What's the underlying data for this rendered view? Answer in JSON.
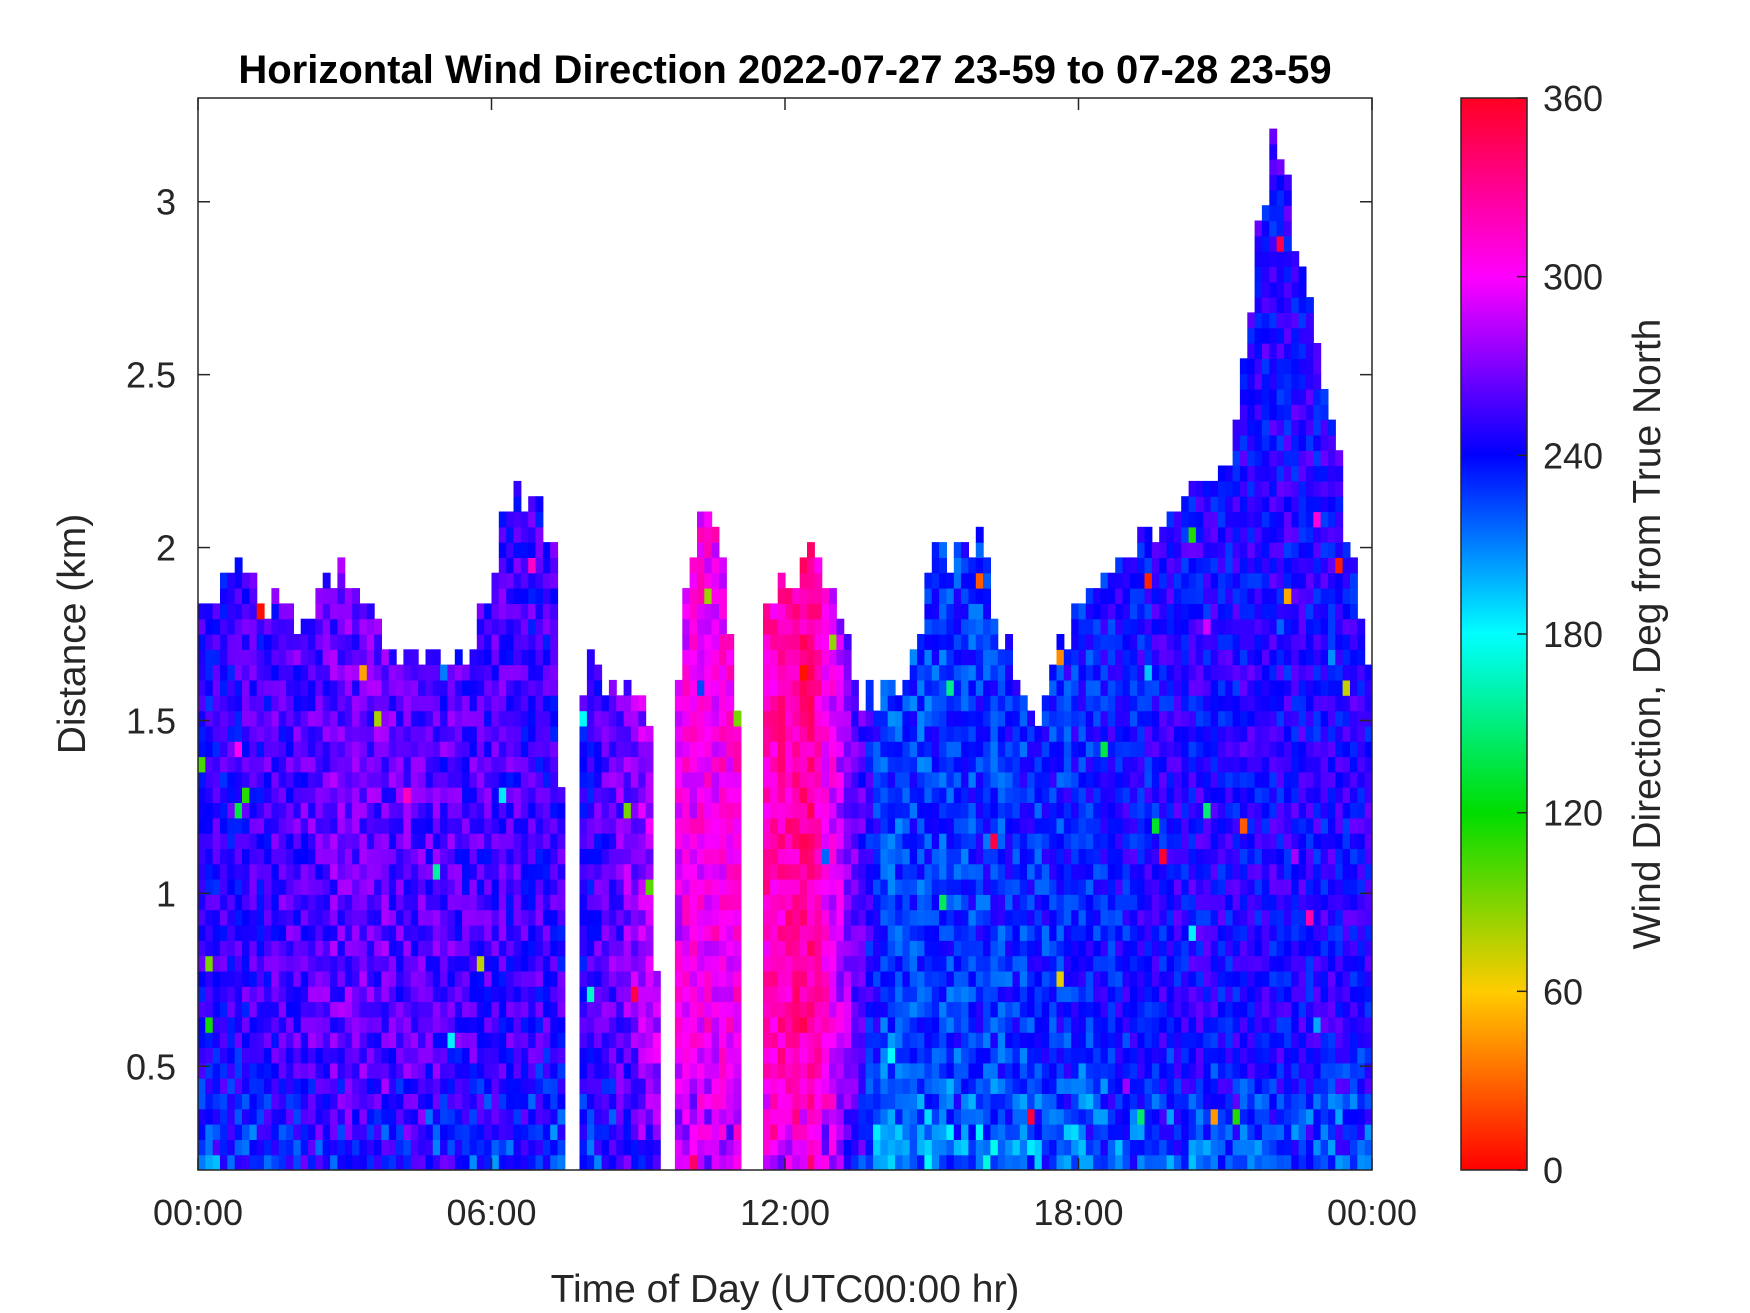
{
  "chart_data": {
    "type": "heatmap",
    "title": "Horizontal Wind Direction 2022-07-27 23-59 to 07-28 23-59",
    "xlabel": "Time of Day (UTC00:00 hr)",
    "ylabel": "Distance (km)",
    "colorbar_label": "Wind Direction, Deg from True North",
    "x_ticks": [
      "00:00",
      "06:00",
      "12:00",
      "18:00",
      "00:00"
    ],
    "xlim_hours": [
      0,
      24
    ],
    "y_ticks": [
      "0.5",
      "1",
      "1.5",
      "2",
      "2.5",
      "3"
    ],
    "y_tick_values": [
      0.5,
      1,
      1.5,
      2,
      2.5,
      3
    ],
    "ylim": [
      0.2,
      3.3
    ],
    "colorbar_ticks": [
      "0",
      "60",
      "120",
      "180",
      "240",
      "300",
      "360"
    ],
    "colorbar_tick_values": [
      0,
      60,
      120,
      180,
      240,
      300,
      360
    ],
    "clim": [
      0,
      360
    ],
    "colormap": [
      "#ff0000",
      "#ffcc00",
      "#00dd00",
      "#00ffff",
      "#0000ff",
      "#ff00ff",
      "#ff0022"
    ],
    "column_top_km": [
      [
        0.0,
        1.8
      ],
      [
        0.5,
        1.9
      ],
      [
        1.0,
        1.95
      ],
      [
        1.5,
        1.85
      ],
      [
        2.0,
        1.8
      ],
      [
        3.0,
        1.95
      ],
      [
        4.0,
        1.7
      ],
      [
        5.0,
        1.65
      ],
      [
        5.5,
        1.7
      ],
      [
        6.0,
        1.9
      ],
      [
        6.5,
        2.2
      ],
      [
        7.3,
        2.0
      ],
      [
        7.6,
        0.2
      ],
      [
        7.9,
        1.7
      ],
      [
        8.5,
        1.55
      ],
      [
        9.2,
        1.6
      ],
      [
        9.5,
        0.2
      ],
      [
        9.9,
        1.9
      ],
      [
        10.5,
        2.2
      ],
      [
        11.0,
        1.6
      ],
      [
        11.3,
        0.2
      ],
      [
        11.6,
        1.8
      ],
      [
        12.5,
        2.0
      ],
      [
        13.0,
        1.9
      ],
      [
        13.5,
        1.55
      ],
      [
        14.5,
        1.6
      ],
      [
        15.0,
        2.0
      ],
      [
        16.0,
        2.0
      ],
      [
        16.5,
        1.7
      ],
      [
        17.2,
        1.5
      ],
      [
        18.0,
        1.85
      ],
      [
        19.0,
        2.0
      ],
      [
        20.0,
        2.1
      ],
      [
        21.0,
        2.2
      ],
      [
        22.0,
        3.2
      ],
      [
        23.0,
        2.5
      ],
      [
        24.0,
        1.6
      ]
    ],
    "data_gaps_hours": [
      [
        7.55,
        7.85
      ],
      [
        9.5,
        9.75
      ],
      [
        11.1,
        11.55
      ]
    ],
    "dominant_direction_deg": [
      [
        0.0,
        245
      ],
      [
        3.0,
        265
      ],
      [
        6.0,
        255
      ],
      [
        8.0,
        250
      ],
      [
        10.0,
        300
      ],
      [
        11.0,
        305
      ],
      [
        12.5,
        330
      ],
      [
        14.0,
        225
      ],
      [
        16.0,
        230
      ],
      [
        18.0,
        235
      ],
      [
        20.0,
        245
      ],
      [
        24.0,
        245
      ]
    ],
    "grid": false
  }
}
